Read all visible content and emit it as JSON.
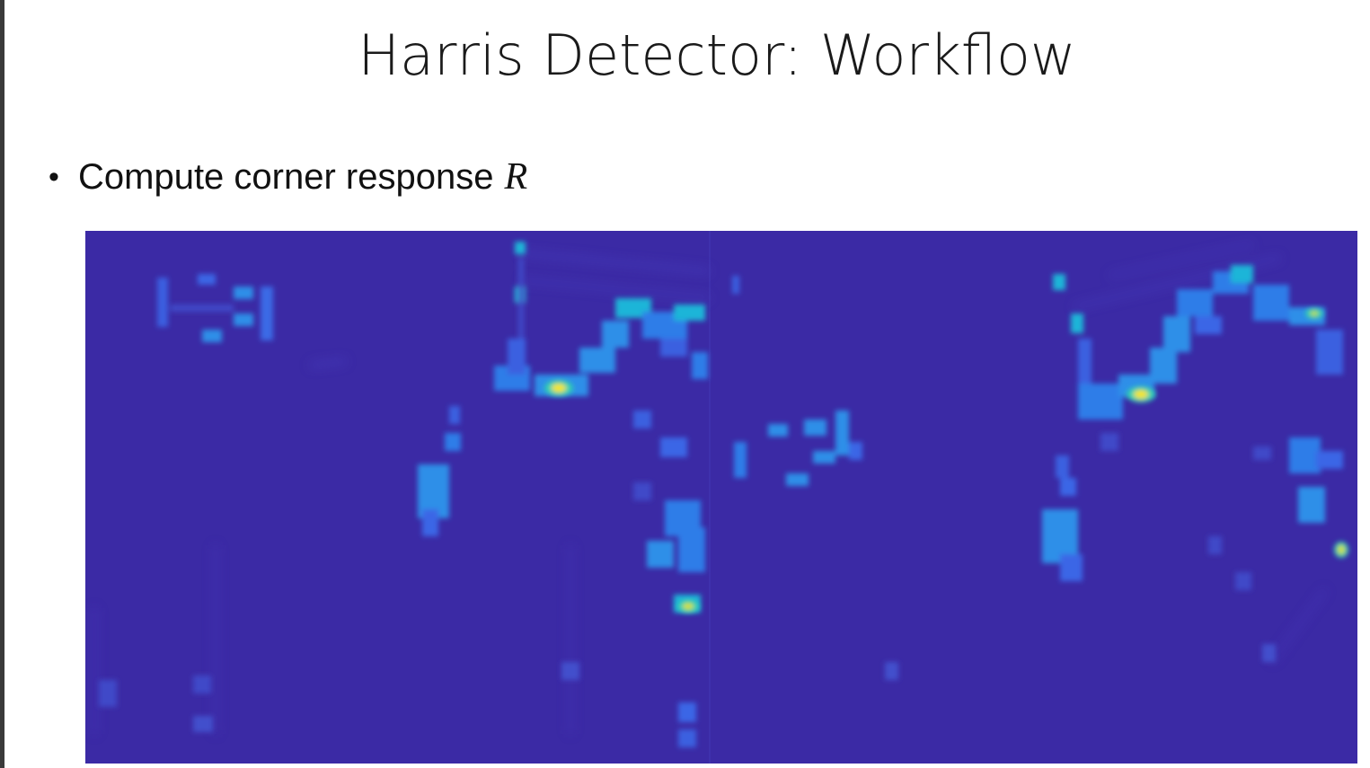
{
  "slide": {
    "title": "Harris Detector: Workflow",
    "bullet": {
      "text": "Compute corner response",
      "variable": "R"
    }
  },
  "figure": {
    "description_colors": {
      "background": "#3b2aa5",
      "low": "#2f6fe0",
      "mid": "#1fb5d8",
      "high": "#f6e51c"
    }
  }
}
